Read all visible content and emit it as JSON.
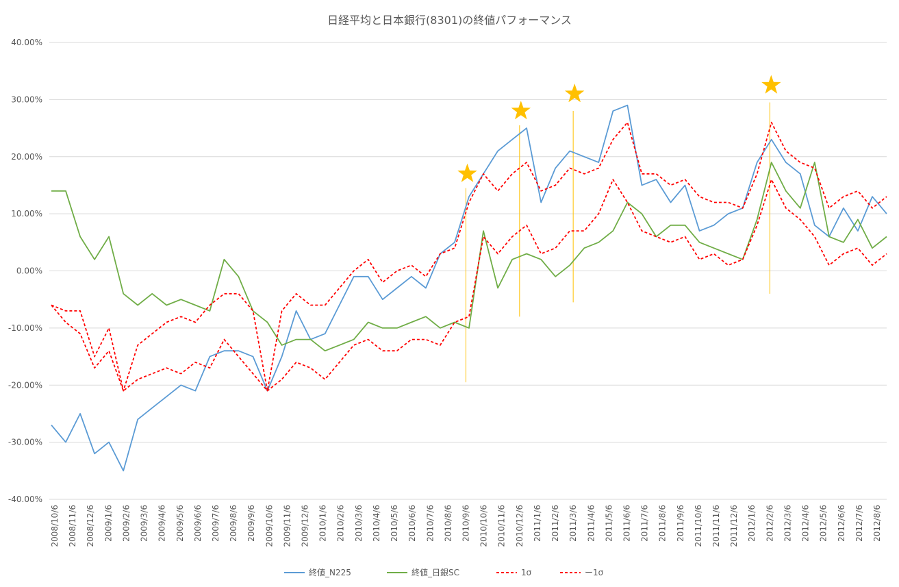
{
  "chart_data": {
    "type": "line",
    "title": "日経平均と日本銀行(8301)の終値パフォーマンス",
    "xlabel": "",
    "ylabel": "",
    "ylim": [
      -0.4,
      0.4
    ],
    "yticks": [
      "40.00%",
      "30.00%",
      "20.00%",
      "10.00%",
      "0.00%",
      "-10.00%",
      "-20.00%",
      "-30.00%",
      "-40.00%"
    ],
    "x_ticks": [
      "2008/10/6",
      "2008/11/6",
      "2008/12/6",
      "2009/1/6",
      "2009/2/6",
      "2009/3/6",
      "2009/4/6",
      "2009/5/6",
      "2009/6/6",
      "2009/7/6",
      "2009/8/6",
      "2009/9/6",
      "2009/10/6",
      "2009/11/6",
      "2009/12/6",
      "2010/1/6",
      "2010/2/6",
      "2010/3/6",
      "2010/4/6",
      "2010/5/6",
      "2010/6/6",
      "2010/7/6",
      "2010/8/6",
      "2010/9/6",
      "2010/10/6",
      "2010/11/6",
      "2010/12/6",
      "2011/1/6",
      "2011/2/6",
      "2011/3/6",
      "2011/4/6",
      "2011/5/6",
      "2011/6/6",
      "2011/7/6",
      "2011/8/6",
      "2011/9/6",
      "2011/10/6",
      "2011/11/6",
      "2011/12/6",
      "2012/1/6",
      "2012/2/6",
      "2012/3/6",
      "2012/4/6",
      "2012/5/6",
      "2012/6/6",
      "2012/7/6",
      "2012/8/6"
    ],
    "grid": true,
    "legend_position": "bottom",
    "series": [
      {
        "name": "終値_N225",
        "color": "#5b9bd5",
        "style": "solid",
        "values": [
          -0.27,
          -0.3,
          -0.25,
          -0.32,
          -0.3,
          -0.35,
          -0.26,
          -0.24,
          -0.22,
          -0.2,
          -0.21,
          -0.15,
          -0.14,
          -0.14,
          -0.15,
          -0.21,
          -0.15,
          -0.07,
          -0.12,
          -0.11,
          -0.06,
          -0.01,
          -0.01,
          -0.05,
          -0.03,
          -0.01,
          -0.03,
          0.03,
          0.05,
          0.13,
          0.17,
          0.21,
          0.23,
          0.25,
          0.12,
          0.18,
          0.21,
          0.2,
          0.19,
          0.28,
          0.29,
          0.15,
          0.16,
          0.12,
          0.15,
          0.07,
          0.08,
          0.1,
          0.11,
          0.19,
          0.23,
          0.19,
          0.17,
          0.08,
          0.06,
          0.11,
          0.07,
          0.13,
          0.1
        ]
      },
      {
        "name": "終値_日銀SC",
        "color": "#70ad47",
        "style": "solid",
        "values": [
          0.14,
          0.14,
          0.06,
          0.02,
          0.06,
          -0.04,
          -0.06,
          -0.04,
          -0.06,
          -0.05,
          -0.06,
          -0.07,
          0.02,
          -0.01,
          -0.07,
          -0.09,
          -0.13,
          -0.12,
          -0.12,
          -0.14,
          -0.13,
          -0.12,
          -0.09,
          -0.1,
          -0.1,
          -0.09,
          -0.08,
          -0.1,
          -0.09,
          -0.1,
          0.07,
          -0.03,
          0.02,
          0.03,
          0.02,
          -0.01,
          0.01,
          0.04,
          0.05,
          0.07,
          0.12,
          0.1,
          0.06,
          0.08,
          0.08,
          0.05,
          0.04,
          0.03,
          0.02,
          0.09,
          0.19,
          0.14,
          0.11,
          0.19,
          0.06,
          0.05,
          0.09,
          0.04,
          0.06
        ]
      },
      {
        "name": "1σ",
        "color": "#ff0000",
        "style": "dashed",
        "values": [
          -0.06,
          -0.07,
          -0.07,
          -0.15,
          -0.1,
          -0.21,
          -0.13,
          -0.11,
          -0.09,
          -0.08,
          -0.09,
          -0.06,
          -0.04,
          -0.04,
          -0.07,
          -0.21,
          -0.07,
          -0.04,
          -0.06,
          -0.06,
          -0.03,
          0.0,
          0.02,
          -0.02,
          0.0,
          0.01,
          -0.01,
          0.03,
          0.04,
          0.12,
          0.17,
          0.14,
          0.17,
          0.19,
          0.14,
          0.15,
          0.18,
          0.17,
          0.18,
          0.23,
          0.26,
          0.17,
          0.17,
          0.15,
          0.16,
          0.13,
          0.12,
          0.12,
          0.11,
          0.17,
          0.26,
          0.21,
          0.19,
          0.18,
          0.11,
          0.13,
          0.14,
          0.11,
          0.13
        ]
      },
      {
        "name": "ー1σ",
        "color": "#ff0000",
        "style": "dashed",
        "values": [
          -0.06,
          -0.09,
          -0.11,
          -0.17,
          -0.14,
          -0.21,
          -0.19,
          -0.18,
          -0.17,
          -0.18,
          -0.16,
          -0.17,
          -0.12,
          -0.15,
          -0.18,
          -0.21,
          -0.19,
          -0.16,
          -0.17,
          -0.19,
          -0.16,
          -0.13,
          -0.12,
          -0.14,
          -0.14,
          -0.12,
          -0.12,
          -0.13,
          -0.09,
          -0.08,
          0.06,
          0.03,
          0.06,
          0.08,
          0.03,
          0.04,
          0.07,
          0.07,
          0.1,
          0.16,
          0.12,
          0.07,
          0.06,
          0.05,
          0.06,
          0.02,
          0.03,
          0.01,
          0.02,
          0.08,
          0.16,
          0.11,
          0.09,
          0.06,
          0.01,
          0.03,
          0.04,
          0.01,
          0.03
        ]
      }
    ],
    "annotations": [
      {
        "type": "star",
        "date": "2010/9/6",
        "y": 0.17,
        "color": "#ffc000"
      },
      {
        "type": "star",
        "date": "2010/12/6",
        "y": 0.28,
        "color": "#ffc000"
      },
      {
        "type": "star",
        "date": "2011/3/6",
        "y": 0.31,
        "color": "#ffc000"
      },
      {
        "type": "star",
        "date": "2012/2/6",
        "y": 0.325,
        "color": "#ffc000"
      }
    ]
  }
}
